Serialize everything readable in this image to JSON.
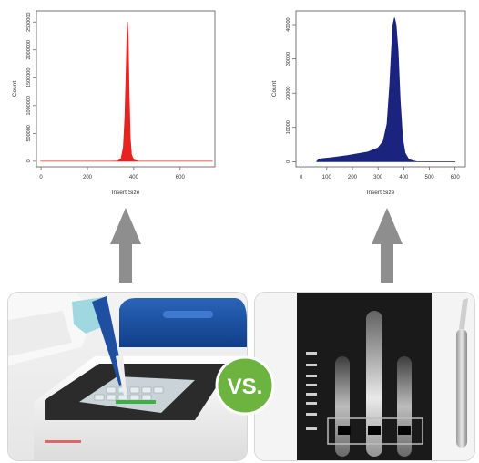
{
  "chart_data": [
    {
      "type": "area",
      "xlabel": "Insert Size",
      "ylabel": "Count",
      "xlim": [
        -20,
        750
      ],
      "ylim": [
        -100000,
        2700000
      ],
      "xticks": [
        0,
        200,
        400,
        600
      ],
      "yticks": [
        0,
        500000,
        1000000,
        1500000,
        2000000,
        2500000
      ],
      "x": [
        0,
        300,
        330,
        345,
        355,
        362,
        367,
        371,
        373,
        376,
        380,
        385,
        390,
        400,
        420,
        740
      ],
      "y": [
        0,
        0,
        3000,
        40000,
        250000,
        800000,
        1600000,
        2300000,
        2500000,
        2200000,
        1200000,
        400000,
        120000,
        20000,
        0,
        0
      ],
      "color": "#e8231f"
    },
    {
      "type": "area",
      "xlabel": "Insert Size",
      "ylabel": "Count",
      "xlim": [
        -20,
        640
      ],
      "ylim": [
        -1500,
        44000
      ],
      "xticks": [
        0,
        100,
        200,
        300,
        400,
        500,
        600
      ],
      "yticks": [
        0,
        10000,
        20000,
        30000,
        40000
      ],
      "x": [
        60,
        70,
        120,
        180,
        260,
        300,
        320,
        335,
        345,
        352,
        358,
        364,
        370,
        378,
        386,
        395,
        405,
        420,
        450,
        600
      ],
      "y": [
        0,
        800,
        1200,
        1800,
        2800,
        4000,
        6000,
        11000,
        22000,
        32000,
        40000,
        42000,
        40000,
        32000,
        18000,
        7000,
        2500,
        600,
        0,
        0
      ],
      "color": "#1a237e"
    }
  ],
  "labels": {
    "vs": "VS."
  },
  "colors": {
    "arrow": "#8e8e8e",
    "badge": "#6db33f"
  }
}
